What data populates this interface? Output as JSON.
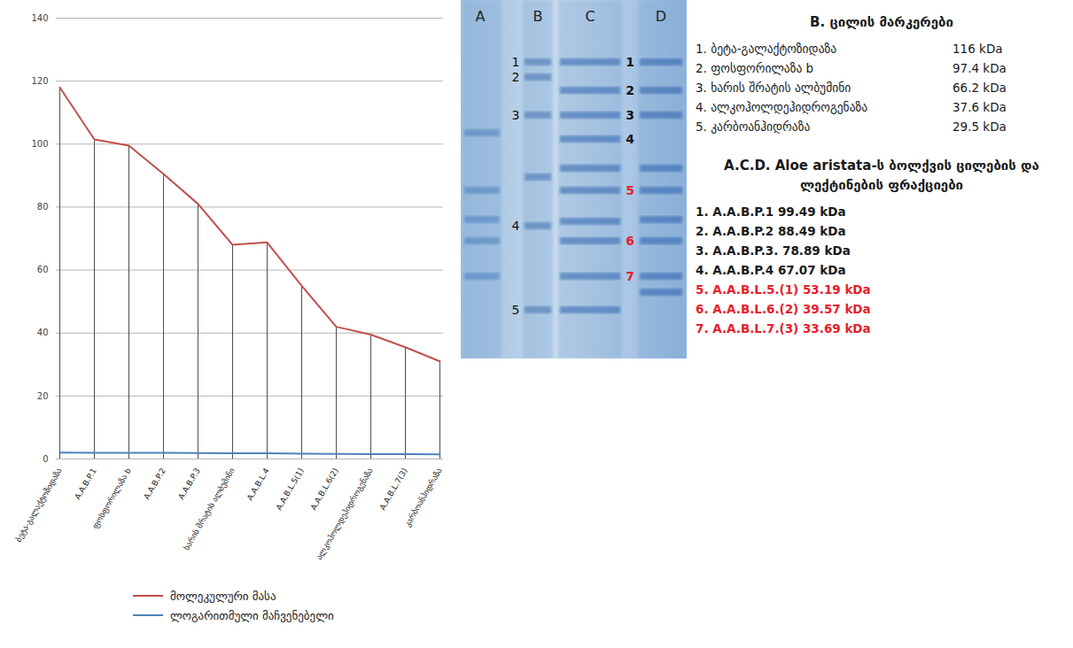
{
  "chart_data": {
    "type": "line",
    "categories": [
      "ბეტა-გალაქტოზიდაზა",
      "A.A.B.P.1",
      "ფოსფორილაზა b",
      "A.A.B.P.2",
      "A.A.B.P.3",
      "ხარის შრატის ალბუმინი",
      "A.A.B.L.4",
      "A.A.B.L.5(1)",
      "A.A.B.L.6(2)",
      "ალკოჰოლდეჰიდროგენაზა",
      "A.A.B.L.7(3)",
      "კარბოანჰიდრაზა"
    ],
    "series": [
      {
        "name": "მოლეკულური მასა",
        "color": "#c0504d",
        "values": [
          118,
          101.5,
          99.5,
          90.5,
          81,
          68,
          68.8,
          55,
          42,
          39.5,
          35.5,
          31
        ]
      },
      {
        "name": "ლოგარითმული მაჩვენებელი",
        "color": "#4f81bd",
        "values": [
          2.07,
          2.0,
          1.99,
          1.95,
          1.9,
          1.82,
          1.83,
          1.72,
          1.6,
          1.57,
          1.53,
          1.47
        ]
      }
    ],
    "ylim": [
      0,
      140
    ],
    "yticks": [
      0,
      20,
      40,
      60,
      80,
      100,
      120,
      140
    ],
    "grid": true,
    "legend": "bottom"
  },
  "gel": {
    "lane_labels": [
      "A",
      "B",
      "C",
      "D"
    ],
    "marker_band_labels": [
      "1",
      "2",
      "3",
      "4",
      "5"
    ],
    "sample_band_labels": [
      {
        "text": "1",
        "color": "#111111"
      },
      {
        "text": "2",
        "color": "#111111"
      },
      {
        "text": "3",
        "color": "#111111"
      },
      {
        "text": "4",
        "color": "#111111"
      },
      {
        "text": "5",
        "color": "#e8202a"
      },
      {
        "text": "6",
        "color": "#e8202a"
      },
      {
        "text": "7",
        "color": "#e8202a"
      }
    ]
  },
  "markers": {
    "title": "B. ცილის მარკერები",
    "items": [
      {
        "name": "1. ბეტა-გალაქტოზიდაზა",
        "mass": "116  kDa"
      },
      {
        "name": "2. ფოსფორილაზა b",
        "mass": "97.4 kDa"
      },
      {
        "name": "3. ხარის შრატის ალბუმინი",
        "mass": "66.2 kDa"
      },
      {
        "name": "4. ალკოჰოლდეჰიდროგენაზა",
        "mass": "37.6 kDa"
      },
      {
        "name": "5. კარბოანჰიდრაზა",
        "mass": "29.5 kDa"
      }
    ]
  },
  "fractions": {
    "title": "A.C.D. Aloe aristata-ს ბოლქვის ცილების და ლექტინების ფრაქციები",
    "items": [
      {
        "text": "1. A.A.B.P.1  99.49 kDa",
        "color": "#1a1a1a"
      },
      {
        "text": "2. A.A.B.P.2  88.49 kDa",
        "color": "#1a1a1a"
      },
      {
        "text": "3. A.A.B.P.3. 78.89 kDa",
        "color": "#1a1a1a"
      },
      {
        "text": "4. A.A.B.P.4  67.07 kDa",
        "color": "#1a1a1a"
      },
      {
        "text": "5. A.A.B.L.5.(1)  53.19 kDa",
        "color": "#e8202a"
      },
      {
        "text": "6. A.A.B.L.6.(2)  39.57 kDa",
        "color": "#e8202a"
      },
      {
        "text": "7. A.A.B.L.7.(3)  33.69 kDa",
        "color": "#e8202a"
      }
    ]
  }
}
